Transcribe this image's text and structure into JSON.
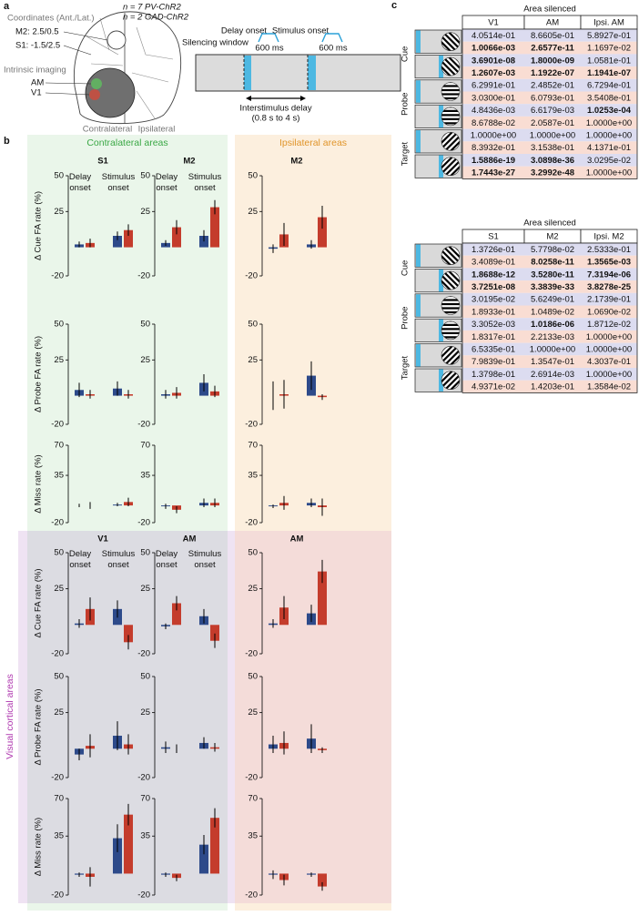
{
  "panel_a": {
    "label": "a",
    "coordinates_title": "Coordinates (Ant./Lat.)",
    "m2_coord": "M2: 2.5/0.5",
    "s1_coord": "S1: -1.5/2.5",
    "imaging": "Intrinsic imaging",
    "am": "AM",
    "v1": "V1",
    "contralateral": "Contralateral",
    "ipsilateral": "Ipsilateral",
    "n_pv": "n = 7 PV-ChR2",
    "n_gad": "n = 2 GAD-ChR2",
    "silencing_window": "Silencing window",
    "delay_onset": "Delay onset",
    "delay_duration": "600 ms",
    "stimulus_onset": "Stimulus onset",
    "stimulus_duration": "600 ms",
    "interstimulus_delay": "Interstimulus delay",
    "delay_range": "(0.8 s to 4 s)"
  },
  "panel_b": {
    "label": "b",
    "contralateral": "Contralateral areas",
    "ipsilateral": "Ipsilateral areas",
    "visual": "Visual cortical areas",
    "series_colors": [
      "#2d4a8a",
      "#c43c2c"
    ],
    "categories": [
      "Delay onset",
      "Stimulus onset"
    ],
    "blocks": [
      {
        "columns": [
          "S1",
          "M2",
          "M2"
        ],
        "rows": [
          {
            "ylabel": "Δ Cue FA rate (%)",
            "ylim": [
              -20,
              50
            ],
            "yticks": [
              50,
              25,
              -20
            ],
            "charts": [
              {
                "series": [
                  {
                    "values": [
                      2,
                      8
                    ],
                    "errors": [
                      2,
                      3
                    ]
                  },
                  {
                    "values": [
                      3,
                      12
                    ],
                    "errors": [
                      3,
                      4
                    ]
                  }
                ]
              },
              {
                "series": [
                  {
                    "values": [
                      3,
                      8
                    ],
                    "errors": [
                      2,
                      4
                    ]
                  },
                  {
                    "values": [
                      14,
                      28
                    ],
                    "errors": [
                      5,
                      5
                    ]
                  }
                ]
              },
              {
                "series": [
                  {
                    "values": [
                      -1,
                      2
                    ],
                    "errors": [
                      3,
                      3
                    ]
                  },
                  {
                    "values": [
                      9,
                      21
                    ],
                    "errors": [
                      8,
                      8
                    ]
                  }
                ]
              }
            ]
          },
          {
            "ylabel": "Δ Probe FA rate (%)",
            "ylim": [
              -20,
              50
            ],
            "yticks": [
              50,
              25,
              -20
            ],
            "charts": [
              {
                "series": [
                  {
                    "values": [
                      4,
                      5
                    ],
                    "errors": [
                      5,
                      5
                    ]
                  },
                  {
                    "values": [
                      1,
                      1
                    ],
                    "errors": [
                      3,
                      3
                    ]
                  }
                ]
              },
              {
                "series": [
                  {
                    "values": [
                      1,
                      9
                    ],
                    "errors": [
                      3,
                      6
                    ]
                  },
                  {
                    "values": [
                      2,
                      3
                    ],
                    "errors": [
                      4,
                      4
                    ]
                  }
                ]
              },
              {
                "series": [
                  {
                    "values": [
                      0,
                      14
                    ],
                    "errors": [
                      10,
                      10
                    ]
                  },
                  {
                    "values": [
                      1,
                      -1
                    ],
                    "errors": [
                      10,
                      2
                    ]
                  }
                ]
              }
            ]
          },
          {
            "ylabel": "Δ Miss rate (%)",
            "ylim": [
              -20,
              70
            ],
            "yticks": [
              70,
              35,
              -20
            ],
            "charts": [
              {
                "series": [
                  {
                    "values": [
                      0,
                      1
                    ],
                    "errors": [
                      2,
                      2
                    ]
                  },
                  {
                    "values": [
                      0,
                      4
                    ],
                    "errors": [
                      4,
                      5
                    ]
                  }
                ]
              },
              {
                "series": [
                  {
                    "values": [
                      -1,
                      3
                    ],
                    "errors": [
                      3,
                      5
                    ]
                  },
                  {
                    "values": [
                      -5,
                      3
                    ],
                    "errors": [
                      4,
                      5
                    ]
                  }
                ]
              },
              {
                "series": [
                  {
                    "values": [
                      -1,
                      3
                    ],
                    "errors": [
                      2,
                      5
                    ]
                  },
                  {
                    "values": [
                      3,
                      -2
                    ],
                    "errors": [
                      8,
                      10
                    ]
                  }
                ]
              }
            ]
          }
        ]
      },
      {
        "columns": [
          "V1",
          "AM",
          "AM"
        ],
        "rows": [
          {
            "ylabel": "Δ Cue FA rate (%)",
            "ylim": [
              -20,
              50
            ],
            "yticks": [
              50,
              25,
              -20
            ],
            "charts": [
              {
                "series": [
                  {
                    "values": [
                      1,
                      11
                    ],
                    "errors": [
                      3,
                      6
                    ]
                  },
                  {
                    "values": [
                      11,
                      -12
                    ],
                    "errors": [
                      8,
                      5
                    ]
                  }
                ]
              },
              {
                "series": [
                  {
                    "values": [
                      -1,
                      6
                    ],
                    "errors": [
                      2,
                      5
                    ]
                  },
                  {
                    "values": [
                      15,
                      -11
                    ],
                    "errors": [
                      5,
                      5
                    ]
                  }
                ]
              },
              {
                "series": [
                  {
                    "values": [
                      1,
                      8
                    ],
                    "errors": [
                      3,
                      6
                    ]
                  },
                  {
                    "values": [
                      12,
                      37
                    ],
                    "errors": [
                      8,
                      8
                    ]
                  }
                ]
              }
            ]
          },
          {
            "ylabel": "Δ Probe FA rate (%)",
            "ylim": [
              -20,
              50
            ],
            "yticks": [
              50,
              25,
              -20
            ],
            "charts": [
              {
                "series": [
                  {
                    "values": [
                      -4,
                      9
                    ],
                    "errors": [
                      4,
                      10
                    ]
                  },
                  {
                    "values": [
                      2,
                      3
                    ],
                    "errors": [
                      8,
                      7
                    ]
                  }
                ]
              },
              {
                "series": [
                  {
                    "values": [
                      1,
                      4
                    ],
                    "errors": [
                      4,
                      4
                    ]
                  },
                  {
                    "values": [
                      0,
                      1
                    ],
                    "errors": [
                      3,
                      3
                    ]
                  }
                ]
              },
              {
                "series": [
                  {
                    "values": [
                      3,
                      7
                    ],
                    "errors": [
                      6,
                      10
                    ]
                  },
                  {
                    "values": [
                      4,
                      -1
                    ],
                    "errors": [
                      8,
                      2
                    ]
                  }
                ]
              }
            ]
          },
          {
            "ylabel": "Δ Miss rate (%)",
            "ylim": [
              -20,
              70
            ],
            "yticks": [
              70,
              35,
              -20
            ],
            "charts": [
              {
                "series": [
                  {
                    "values": [
                      -1,
                      33
                    ],
                    "errors": [
                      2,
                      13
                    ]
                  },
                  {
                    "values": [
                      -3,
                      55
                    ],
                    "errors": [
                      9,
                      10
                    ]
                  }
                ]
              },
              {
                "series": [
                  {
                    "values": [
                      -1,
                      27
                    ],
                    "errors": [
                      2,
                      9
                    ]
                  },
                  {
                    "values": [
                      -4,
                      52
                    ],
                    "errors": [
                      3,
                      9
                    ]
                  }
                ]
              },
              {
                "series": [
                  {
                    "values": [
                      -1,
                      -1
                    ],
                    "errors": [
                      4,
                      2
                    ]
                  },
                  {
                    "values": [
                      -6,
                      -12
                    ],
                    "errors": [
                      5,
                      4
                    ]
                  }
                ]
              }
            ]
          }
        ]
      }
    ]
  },
  "panel_c": {
    "label": "c",
    "row_colors": [
      "#dcdcf0",
      "#f9ddd3"
    ],
    "icon_colors": {
      "screen": "#d9d9d9",
      "light": "#4db8e2"
    },
    "tables": [
      {
        "title": "Area silenced",
        "columns": [
          "V1",
          "AM",
          "Ipsi. AM"
        ],
        "groups": [
          "Cue",
          "Probe",
          "Target"
        ],
        "rows": [
          {
            "cells": [
              "4.0514e-01",
              "8.6605e-01",
              "5.8927e-01"
            ],
            "bold": [
              false,
              false,
              false
            ]
          },
          {
            "cells": [
              "1.0066e-03",
              "2.6577e-11",
              "1.1697e-02"
            ],
            "bold": [
              true,
              true,
              false
            ]
          },
          {
            "cells": [
              "3.6901e-08",
              "1.8000e-09",
              "1.0581e-01"
            ],
            "bold": [
              true,
              true,
              false
            ]
          },
          {
            "cells": [
              "1.2607e-03",
              "1.1922e-07",
              "1.1941e-07"
            ],
            "bold": [
              true,
              true,
              true
            ]
          },
          {
            "cells": [
              "6.2991e-01",
              "2.4852e-01",
              "6.7294e-01"
            ],
            "bold": [
              false,
              false,
              false
            ]
          },
          {
            "cells": [
              "3.0300e-01",
              "6.0793e-01",
              "3.5408e-01"
            ],
            "bold": [
              false,
              false,
              false
            ]
          },
          {
            "cells": [
              "4.8436e-03",
              "6.6179e-03",
              "1.0253e-04"
            ],
            "bold": [
              false,
              false,
              true
            ]
          },
          {
            "cells": [
              "8.6788e-02",
              "2.0587e-01",
              "1.0000e+00"
            ],
            "bold": [
              false,
              false,
              false
            ]
          },
          {
            "cells": [
              "1.0000e+00",
              "1.0000e+00",
              "1.0000e+00"
            ],
            "bold": [
              false,
              false,
              false
            ]
          },
          {
            "cells": [
              "8.3932e-01",
              "3.1538e-01",
              "4.1371e-01"
            ],
            "bold": [
              false,
              false,
              false
            ]
          },
          {
            "cells": [
              "1.5886e-19",
              "3.0898e-36",
              "3.0295e-02"
            ],
            "bold": [
              true,
              true,
              false
            ]
          },
          {
            "cells": [
              "1.7443e-27",
              "3.2992e-48",
              "1.0000e+00"
            ],
            "bold": [
              true,
              true,
              false
            ]
          }
        ]
      },
      {
        "title": "Area silenced",
        "columns": [
          "S1",
          "M2",
          "Ipsi. M2"
        ],
        "groups": [
          "Cue",
          "Probe",
          "Target"
        ],
        "rows": [
          {
            "cells": [
              "1.3726e-01",
              "5.7798e-02",
              "2.5333e-01"
            ],
            "bold": [
              false,
              false,
              false
            ]
          },
          {
            "cells": [
              "3.4089e-01",
              "8.0258e-11",
              "1.3565e-03"
            ],
            "bold": [
              false,
              true,
              true
            ]
          },
          {
            "cells": [
              "1.8688e-12",
              "3.5280e-11",
              "7.3194e-06"
            ],
            "bold": [
              true,
              true,
              true
            ]
          },
          {
            "cells": [
              "3.7251e-08",
              "3.3839e-33",
              "3.8278e-25"
            ],
            "bold": [
              true,
              true,
              true
            ]
          },
          {
            "cells": [
              "3.0195e-02",
              "5.6249e-01",
              "2.1739e-01"
            ],
            "bold": [
              false,
              false,
              false
            ]
          },
          {
            "cells": [
              "1.8933e-01",
              "1.0489e-02",
              "1.0690e-02"
            ],
            "bold": [
              false,
              false,
              false
            ]
          },
          {
            "cells": [
              "3.3052e-03",
              "1.0186e-06",
              "1.8712e-02"
            ],
            "bold": [
              false,
              true,
              false
            ]
          },
          {
            "cells": [
              "1.8317e-01",
              "2.2133e-03",
              "1.0000e+00"
            ],
            "bold": [
              false,
              false,
              false
            ]
          },
          {
            "cells": [
              "6.5335e-01",
              "1.0000e+00",
              "1.0000e+00"
            ],
            "bold": [
              false,
              false,
              false
            ]
          },
          {
            "cells": [
              "7.9839e-01",
              "1.3547e-01",
              "4.3037e-01"
            ],
            "bold": [
              false,
              false,
              false
            ]
          },
          {
            "cells": [
              "1.3798e-01",
              "2.6914e-03",
              "1.0000e+00"
            ],
            "bold": [
              false,
              false,
              false
            ]
          },
          {
            "cells": [
              "4.9371e-02",
              "1.4203e-01",
              "1.3584e-02"
            ],
            "bold": [
              false,
              false,
              false
            ]
          }
        ]
      }
    ]
  }
}
